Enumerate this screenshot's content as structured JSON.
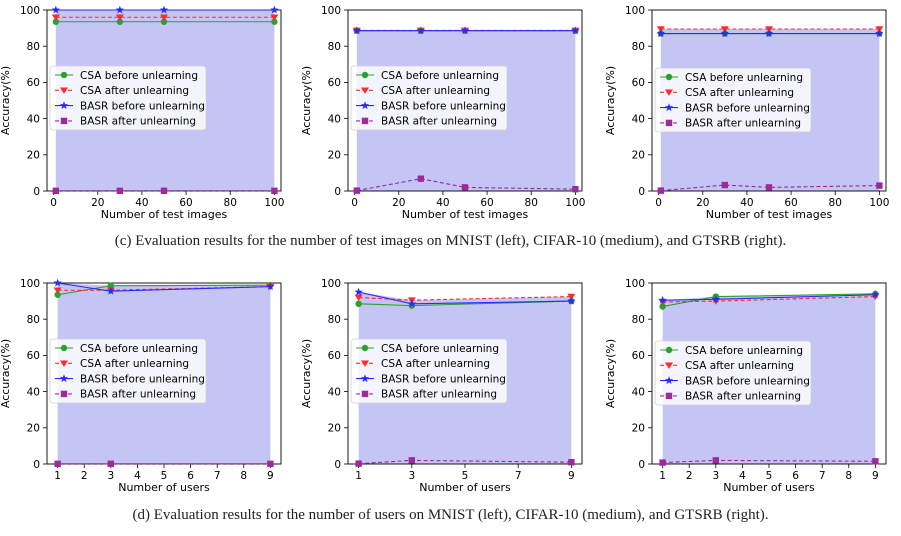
{
  "captions": {
    "c": "(c) Evaluation results for the number of test images on MNIST (left), CIFAR-10 (medium), and GTSRB (right).",
    "d": "(d) Evaluation results for the number of users on MNIST (left), CIFAR-10 (medium), and GTSRB (right)."
  },
  "style": {
    "fill": "#c5c5f5",
    "series_colors": [
      "#2ca02c",
      "#ff2a2a",
      "#2a2aff",
      "#9b2a9b"
    ],
    "series_markers": [
      "circle",
      "triangle-down",
      "star",
      "square"
    ],
    "series_dashed": [
      false,
      true,
      false,
      true
    ]
  },
  "chart_data": [
    {
      "type": "line",
      "row": 0,
      "col": 0,
      "xlabel": "Number of test images",
      "ylabel": "Accuracy(%)",
      "xlim": [
        -3,
        103
      ],
      "ylim": [
        0,
        100
      ],
      "xticks": [
        0,
        20,
        40,
        60,
        80,
        100
      ],
      "yticks": [
        0,
        20,
        40,
        60,
        80,
        100
      ],
      "x": [
        1,
        30,
        50,
        100
      ],
      "legend_position": "center-left",
      "series": [
        {
          "name": "CSA before unlearning",
          "values": [
            93.5,
            93.5,
            93.5,
            93.5
          ]
        },
        {
          "name": "CSA after unlearning",
          "values": [
            96,
            96,
            96,
            96
          ]
        },
        {
          "name": "BASR before unlearning",
          "values": [
            100,
            100,
            100,
            100
          ]
        },
        {
          "name": "BASR after unlearning",
          "values": [
            0.1,
            0.1,
            0.1,
            0.1
          ]
        }
      ]
    },
    {
      "type": "line",
      "row": 0,
      "col": 1,
      "xlabel": "Number of test images",
      "ylabel": "Accuracy(%)",
      "xlim": [
        -3,
        103
      ],
      "ylim": [
        0,
        100
      ],
      "xticks": [
        0,
        20,
        40,
        60,
        80,
        100
      ],
      "yticks": [
        0,
        20,
        40,
        60,
        80,
        100
      ],
      "x": [
        1,
        30,
        50,
        100
      ],
      "legend_position": "center-left",
      "series": [
        {
          "name": "CSA before unlearning",
          "values": [
            88.5,
            88.5,
            88.5,
            88.5
          ]
        },
        {
          "name": "CSA after unlearning",
          "values": [
            88.7,
            88.7,
            88.7,
            88.7
          ]
        },
        {
          "name": "BASR before unlearning",
          "values": [
            88.6,
            88.6,
            88.6,
            88.6
          ]
        },
        {
          "name": "BASR after unlearning",
          "values": [
            0.2,
            6.8,
            2.0,
            1.0
          ]
        }
      ]
    },
    {
      "type": "line",
      "row": 0,
      "col": 2,
      "xlabel": "Number of test images",
      "ylabel": "Accuracy(%)",
      "xlim": [
        -3,
        103
      ],
      "ylim": [
        0,
        100
      ],
      "xticks": [
        0,
        20,
        40,
        60,
        80,
        100
      ],
      "yticks": [
        0,
        20,
        40,
        60,
        80,
        100
      ],
      "x": [
        1,
        30,
        50,
        100
      ],
      "legend_position": "upper-left",
      "series": [
        {
          "name": "CSA before unlearning",
          "values": [
            87,
            87,
            87,
            87
          ]
        },
        {
          "name": "CSA after unlearning",
          "values": [
            89.5,
            89.5,
            89.5,
            89.5
          ]
        },
        {
          "name": "BASR before unlearning",
          "values": [
            87,
            87,
            87,
            87
          ]
        },
        {
          "name": "BASR after unlearning",
          "values": [
            0.2,
            3.3,
            2.0,
            3.0
          ]
        }
      ]
    },
    {
      "type": "line",
      "row": 1,
      "col": 0,
      "xlabel": "Number of users",
      "ylabel": "Accuracy(%)",
      "xlim": [
        0.6,
        9.4
      ],
      "ylim": [
        0,
        100
      ],
      "xticks": [
        1,
        2,
        3,
        4,
        5,
        6,
        7,
        8,
        9
      ],
      "yticks": [
        0,
        20,
        40,
        60,
        80,
        100
      ],
      "x": [
        1,
        3,
        9
      ],
      "legend_position": "center-left",
      "series": [
        {
          "name": "CSA before unlearning",
          "values": [
            93.5,
            98.5,
            98.8
          ]
        },
        {
          "name": "CSA after unlearning",
          "values": [
            96,
            96,
            98
          ]
        },
        {
          "name": "BASR before unlearning",
          "values": [
            100,
            95.5,
            98
          ]
        },
        {
          "name": "BASR after unlearning",
          "values": [
            0.1,
            0.1,
            0.1
          ]
        }
      ]
    },
    {
      "type": "line",
      "row": 1,
      "col": 1,
      "xlabel": "Number of users",
      "ylabel": "Accuracy(%)",
      "xlim": [
        0.6,
        9.4
      ],
      "ylim": [
        0,
        100
      ],
      "xticks": [
        1,
        3,
        5,
        7,
        9
      ],
      "yticks": [
        0,
        20,
        40,
        60,
        80,
        100
      ],
      "x": [
        1,
        3,
        9
      ],
      "legend_position": "center-left",
      "series": [
        {
          "name": "CSA before unlearning",
          "values": [
            88.5,
            87.5,
            90
          ]
        },
        {
          "name": "CSA after unlearning",
          "values": [
            92,
            90.5,
            92.5
          ]
        },
        {
          "name": "BASR before unlearning",
          "values": [
            95,
            88.5,
            90
          ]
        },
        {
          "name": "BASR after unlearning",
          "values": [
            0.2,
            2.0,
            1.0
          ]
        }
      ]
    },
    {
      "type": "line",
      "row": 1,
      "col": 2,
      "xlabel": "Number of users",
      "ylabel": "Accuracy(%)",
      "xlim": [
        0.6,
        9.4
      ],
      "ylim": [
        0,
        100
      ],
      "xticks": [
        1,
        2,
        3,
        4,
        5,
        6,
        7,
        8,
        9
      ],
      "yticks": [
        0,
        20,
        40,
        60,
        80,
        100
      ],
      "x": [
        1,
        3,
        9
      ],
      "legend_position": "upper-left",
      "series": [
        {
          "name": "CSA before unlearning",
          "values": [
            87,
            92.5,
            94
          ]
        },
        {
          "name": "CSA after unlearning",
          "values": [
            89.5,
            90,
            92.5
          ]
        },
        {
          "name": "BASR before unlearning",
          "values": [
            90.5,
            91,
            93.5
          ]
        },
        {
          "name": "BASR after unlearning",
          "values": [
            0.8,
            2.0,
            1.5
          ]
        }
      ]
    }
  ]
}
